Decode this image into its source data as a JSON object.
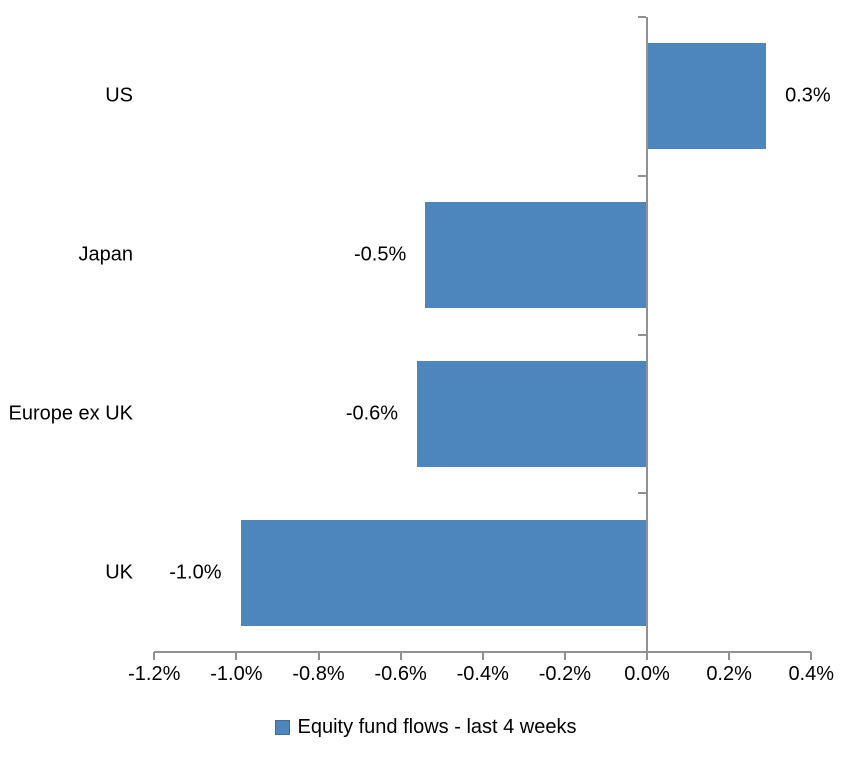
{
  "chart_data": {
    "type": "bar",
    "orientation": "horizontal",
    "title": "",
    "legend": "Equity fund flows - last 4 weeks",
    "legend_position": "bottom-center",
    "grid": false,
    "categories": [
      "US",
      "Japan",
      "Europe ex UK",
      "UK"
    ],
    "series": [
      {
        "name": "Equity fund flows - last 4 weeks",
        "values": [
          0.3,
          -0.5,
          -0.6,
          -1.0
        ],
        "values_bar_length_est": [
          0.29,
          -0.54,
          -0.56,
          -0.99
        ],
        "data_labels": [
          "0.3%",
          "-0.5%",
          "-0.6%",
          "-1.0%"
        ]
      }
    ],
    "x_axis": {
      "unit": "%",
      "min": -1.2,
      "max": 0.4,
      "tick_step": 0.2,
      "tick_values": [
        -1.2,
        -1.0,
        -0.8,
        -0.6,
        -0.4,
        -0.2,
        0.0,
        0.2,
        0.4
      ],
      "tick_labels": [
        "-1.2%",
        "-1.0%",
        "-0.8%",
        "-0.6%",
        "-0.4%",
        "-0.2%",
        "0.0%",
        "0.2%",
        "0.4%"
      ]
    },
    "style": {
      "bar_color": "#4C86BC",
      "legend_marker_color": "#4C86BC",
      "legend_marker_border": "#3D6E9E",
      "axis_color": "#919191",
      "text_color": "#000000",
      "background_color": "#ffffff"
    }
  }
}
